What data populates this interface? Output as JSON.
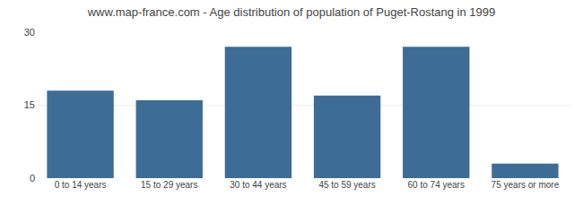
{
  "chart_data": {
    "type": "bar",
    "title": "www.map-france.com - Age distribution of population of Puget-Rostang in 1999",
    "categories": [
      "0 to 14 years",
      "15 to 29 years",
      "30 to 44 years",
      "45 to 59 years",
      "60 to 74 years",
      "75 years or more"
    ],
    "values": [
      18,
      16,
      27,
      17,
      27,
      3
    ],
    "color": "#3d6d96",
    "ylim": [
      0,
      30
    ],
    "yticks": [
      0,
      15,
      30
    ],
    "grid": true
  }
}
